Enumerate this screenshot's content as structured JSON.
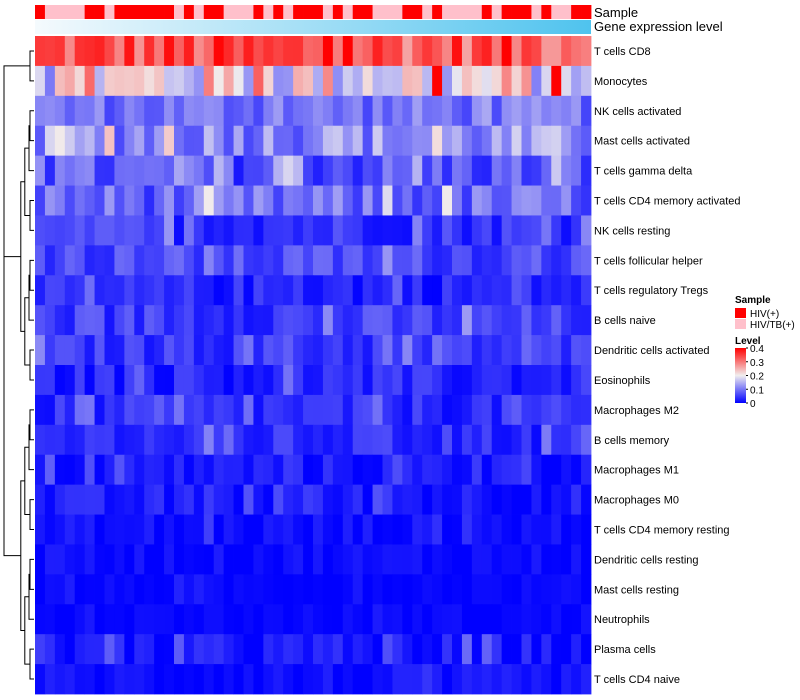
{
  "chart_data": {
    "type": "heatmap",
    "annotation_labels": [
      "Sample",
      "Gene expression level"
    ],
    "rows": [
      "T cells CD8",
      "Monocytes",
      "NK cells activated",
      "Mast cells activated",
      "T cells gamma delta",
      "T cells CD4 memory activated",
      "NK cells resting",
      "T cells follicular helper",
      "T cells regulatory  Tregs",
      "B cells naive",
      "Dendritic cells activated",
      "Eosinophils",
      "Macrophages M2",
      "B cells memory",
      "Macrophages M1",
      "Macrophages M0",
      "T cells CD4 memory resting",
      "Dendritic cells resting",
      "Mast cells resting",
      "Neutrophils",
      "Plasma cells",
      "T cells CD4 naive"
    ],
    "sample_groups": [
      "HIV(+)",
      "HIV/TB(+)",
      "HIV/TB(+)",
      "HIV/TB(+)",
      "HIV/TB(+)",
      "HIV(+)",
      "HIV(+)",
      "HIV/TB(+)",
      "HIV(+)",
      "HIV(+)",
      "HIV(+)",
      "HIV(+)",
      "HIV(+)",
      "HIV(+)",
      "HIV/TB(+)",
      "HIV(+)",
      "HIV/TB(+)",
      "HIV(+)",
      "HIV(+)",
      "HIV/TB(+)",
      "HIV/TB(+)",
      "HIV/TB(+)",
      "HIV(+)",
      "HIV/TB(+)",
      "HIV(+)",
      "HIV/TB(+)",
      "HIV(+)",
      "HIV(+)",
      "HIV(+)",
      "HIV/TB(+)",
      "HIV(+)",
      "HIV/TB(+)",
      "HIV(+)",
      "HIV(+)",
      "HIV/TB(+)",
      "HIV/TB(+)",
      "HIV/TB(+)",
      "HIV(+)",
      "HIV(+)",
      "HIV/TB(+)",
      "HIV(+)",
      "HIV/TB(+)",
      "HIV/TB(+)",
      "HIV/TB(+)",
      "HIV/TB(+)",
      "HIV(+)",
      "HIV/TB(+)",
      "HIV(+)",
      "HIV(+)",
      "HIV(+)",
      "HIV/TB(+)",
      "HIV(+)",
      "HIV/TB(+)",
      "HIV/TB(+)",
      "HIV(+)",
      "HIV(+)"
    ],
    "gene_expression_gradient": [
      "#f5fafd",
      "#4fc3ee"
    ],
    "row_means": [
      0.33,
      0.2,
      0.095,
      0.12,
      0.07,
      0.085,
      0.045,
      0.06,
      0.03,
      0.05,
      0.045,
      0.03,
      0.035,
      0.035,
      0.02,
      0.02,
      0.01,
      0.01,
      0.005,
      0.005,
      0.015,
      0.01
    ],
    "row_spread": [
      0.07,
      0.1,
      0.04,
      0.06,
      0.05,
      0.05,
      0.035,
      0.035,
      0.03,
      0.035,
      0.03,
      0.03,
      0.03,
      0.03,
      0.025,
      0.025,
      0.02,
      0.015,
      0.01,
      0.01,
      0.03,
      0.02
    ],
    "color_scale": {
      "min": 0,
      "mid": 0.2,
      "max": 0.4,
      "low_color": "#0000ff",
      "mid_color": "#f1eeee",
      "high_color": "#ff0000"
    },
    "legend": {
      "sample_title": "Sample",
      "sample_entries": [
        {
          "label": "HIV(+)",
          "color": "#ff0000"
        },
        {
          "label": "HIV/TB(+)",
          "color": "#ffc0cb"
        }
      ],
      "level_title": "Level",
      "level_ticks": [
        "0.4",
        "0.3",
        "0.2",
        "0.1",
        "0"
      ],
      "position": "right"
    },
    "dendrogram": "row clustering tree on the left"
  }
}
